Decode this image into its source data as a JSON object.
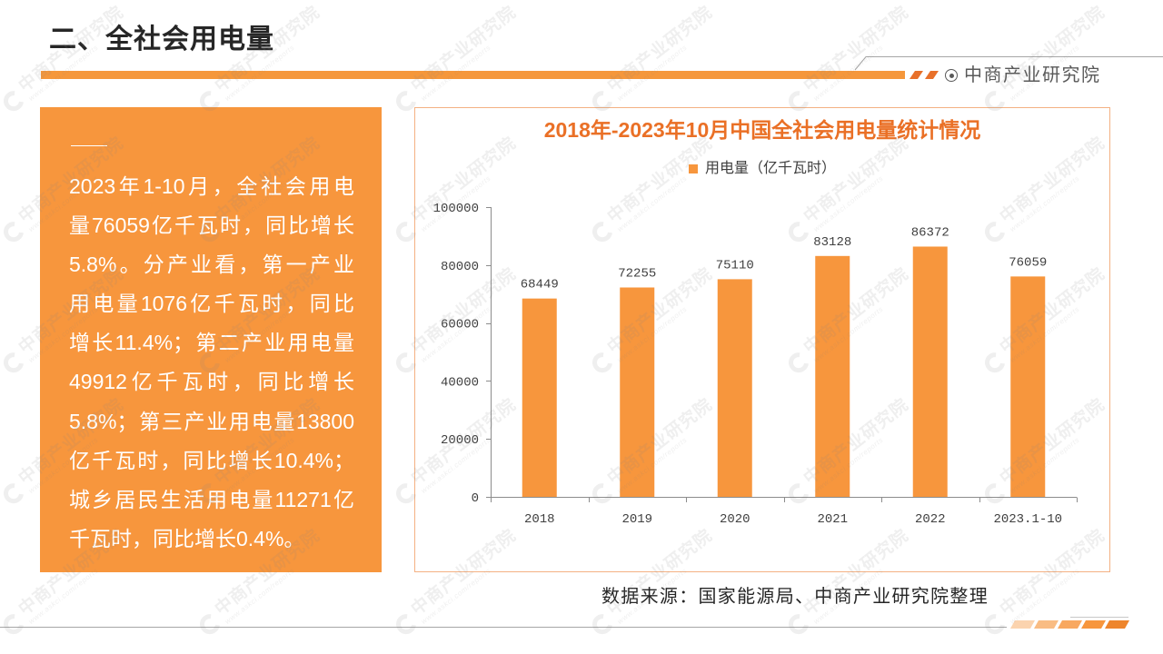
{
  "slide": {
    "title": "二、全社会用电量",
    "brand_name": "中商产业研究院",
    "brand_icon": "circle-dot-icon"
  },
  "summary": {
    "lines": [
      "2023年1-10月，全社会用电",
      "量76059亿千瓦时，同比增长",
      "5.8%。分产业看，第一产业",
      "用电量1076亿千瓦时，同比",
      "增长11.4%；第二产业用电量",
      "49912亿千瓦时，同比增长",
      "5.8%；第三产业用电量13800",
      "亿千瓦时，同比增长10.4%；",
      "城乡居民生活用电量11271亿",
      "千瓦时，同比增长0.4%。"
    ]
  },
  "chart_data": {
    "type": "bar",
    "title": "2018年-2023年10月中国全社会用电量统计情况",
    "categories": [
      "2018",
      "2019",
      "2020",
      "2021",
      "2022",
      "2023.1-10"
    ],
    "series": [
      {
        "name": "用电量（亿千瓦时）",
        "values": [
          68449,
          72255,
          75110,
          83128,
          86372,
          76059
        ],
        "color": "#F7963D"
      }
    ],
    "ylim": [
      0,
      100000
    ],
    "yticks": [
      0,
      20000,
      40000,
      60000,
      80000,
      100000
    ],
    "data_labels": true,
    "grid": false,
    "legend": "top-center"
  },
  "source": "数据来源：国家能源局、中商产业研究院整理",
  "watermark": {
    "icon": "askci-logo-icon",
    "name": "中商产业研究院",
    "url": "www.askci.com/reports"
  },
  "colors": {
    "accent": "#F7963D",
    "chart_title": "#EA7026",
    "panel_border": "#F4B183",
    "header_bar": "#F5973B"
  }
}
